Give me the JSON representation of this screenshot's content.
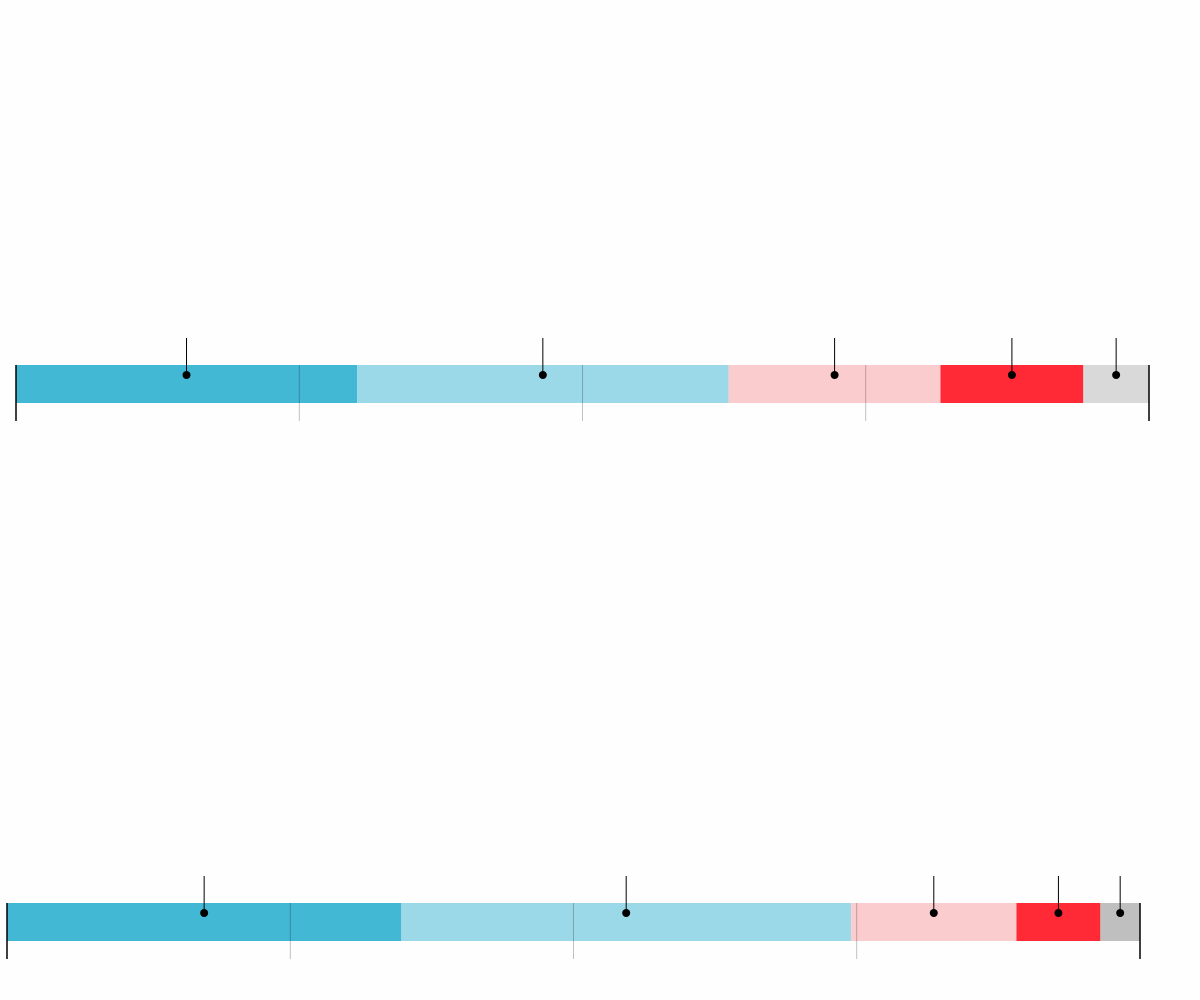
{
  "chart_data": [
    {
      "type": "stacked-bar",
      "orientation": "horizontal",
      "xlim": [
        0,
        100
      ],
      "xticks": [
        0,
        25,
        50,
        75,
        100
      ],
      "series": [
        {
          "color": "#42b8d5",
          "values": [
            30.1
          ]
        },
        {
          "color": "#9cd9e8",
          "values": [
            32.8
          ]
        },
        {
          "color": "#fbccce",
          "values": [
            18.7
          ]
        },
        {
          "color": "#ff2a36",
          "values": [
            12.6
          ]
        },
        {
          "color": "#d9d9d9",
          "values": [
            5.8
          ]
        }
      ]
    },
    {
      "type": "stacked-bar",
      "orientation": "horizontal",
      "xlim": [
        0,
        100
      ],
      "xticks": [
        0,
        25,
        50,
        75,
        100
      ],
      "series": [
        {
          "color": "#42b8d5",
          "values": [
            34.8
          ]
        },
        {
          "color": "#9cd9e8",
          "values": [
            39.7
          ]
        },
        {
          "color": "#fbccce",
          "values": [
            14.6
          ]
        },
        {
          "color": "#ff2a36",
          "values": [
            7.4
          ]
        },
        {
          "color": "#bfbfbf",
          "values": [
            3.5
          ]
        }
      ]
    }
  ]
}
